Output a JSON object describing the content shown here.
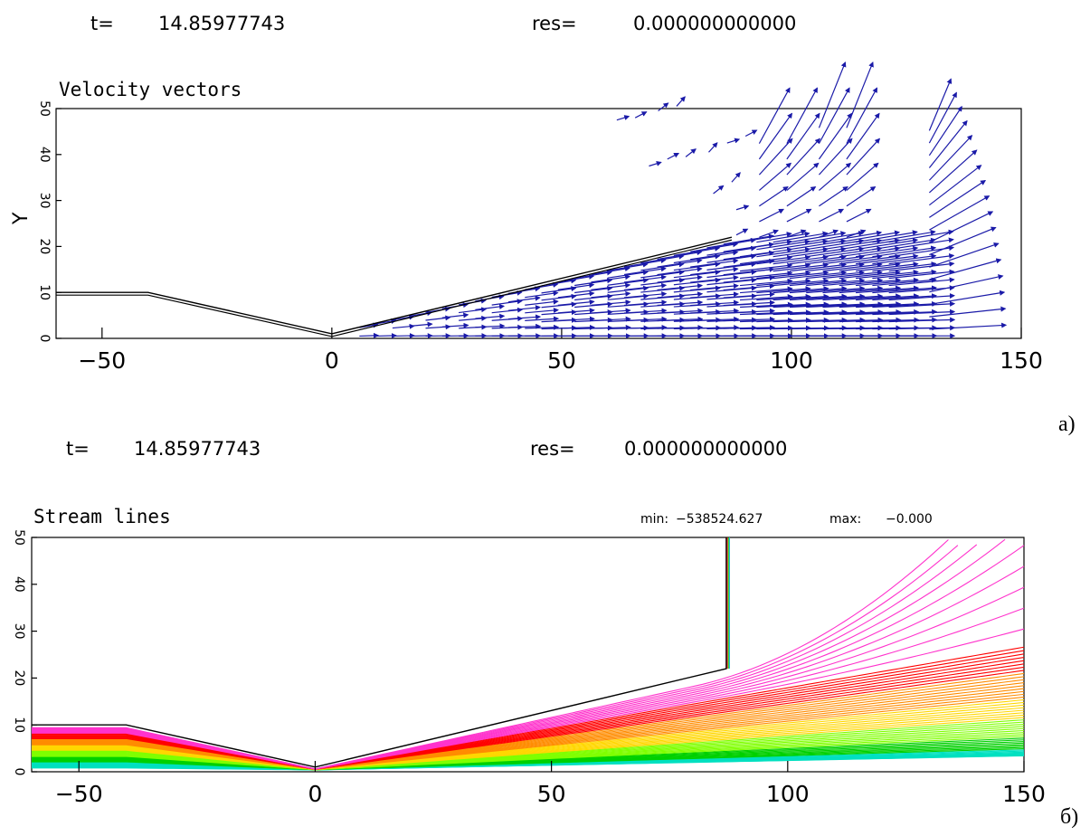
{
  "panel_a": {
    "t_label": "t=",
    "t_value": "14.85977743",
    "res_label": "res=",
    "res_value": "0.000000000000",
    "panel_label": "a)"
  },
  "panel_b": {
    "t_label": "t=",
    "t_value": "14.85977743",
    "res_label": "res=",
    "res_value": "0.000000000000",
    "min_label": "min:",
    "min_value": "−538524.627",
    "max_label": "max:",
    "max_value": "−0.000",
    "panel_label": "б)"
  },
  "colors": {
    "vectors": "#1a1aa8",
    "boundary": "#000000",
    "stream_palette": [
      "#ff33cc",
      "#ff0000",
      "#ff8c00",
      "#ffd700",
      "#7fff00",
      "#00d000",
      "#00e0c0",
      "#22b0e0"
    ]
  },
  "chart_data": [
    {
      "type": "vector-field",
      "title": "Velocity vectors",
      "ylabel": "Y",
      "xlim": [
        -60,
        150
      ],
      "ylim": [
        0,
        50
      ],
      "xticks": [
        -50,
        0,
        50,
        100,
        150
      ],
      "yticks": [
        0,
        10,
        20,
        30,
        40,
        50
      ],
      "boundary": [
        [
          -60,
          10
        ],
        [
          -40,
          10
        ],
        [
          0,
          1
        ],
        [
          87,
          22
        ]
      ],
      "grid": false
    },
    {
      "type": "streamlines",
      "title": "Stream lines",
      "xlim": [
        -60,
        150
      ],
      "ylim": [
        0,
        50
      ],
      "xticks": [
        -50,
        0,
        50,
        100,
        150
      ],
      "yticks": [
        0,
        10,
        20,
        30,
        40,
        50
      ],
      "boundary": [
        [
          -60,
          10
        ],
        [
          -40,
          10
        ],
        [
          0,
          1
        ],
        [
          87,
          22
        ],
        [
          87,
          50
        ]
      ],
      "grid": false
    }
  ]
}
